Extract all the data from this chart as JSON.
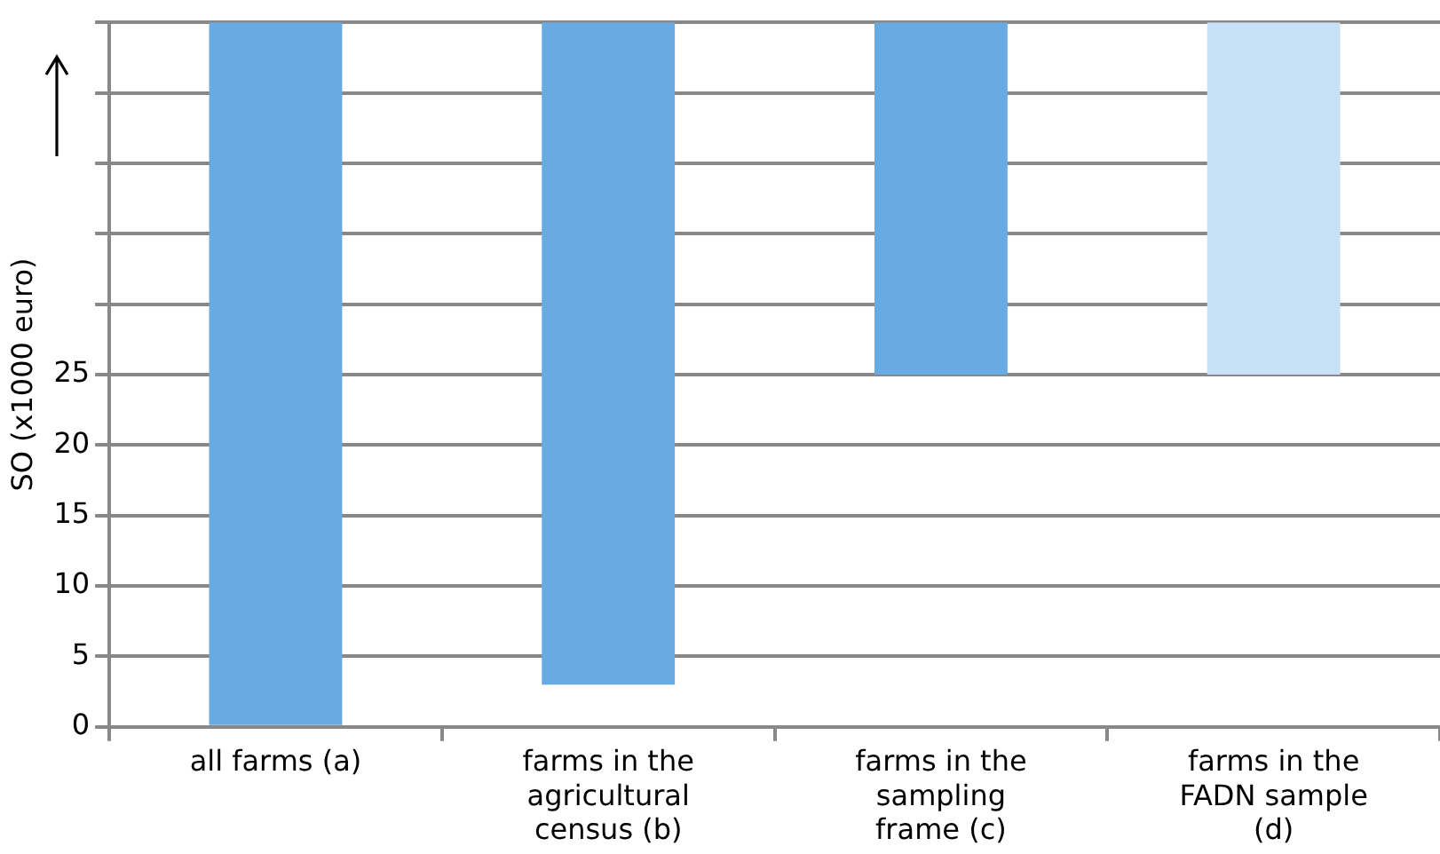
{
  "chart_data": {
    "type": "bar",
    "ylabel": "SO (x1000 euro)",
    "categories": [
      "all farms (a)",
      "farms in the agricultural census (b)",
      "farms in the sampling frame (c)",
      "farms in the FADN sample (d)"
    ],
    "values": [
      50,
      47,
      25,
      25
    ],
    "base": [
      0,
      3,
      25,
      25
    ],
    "colors": [
      "#68abe2",
      "#68abe2",
      "#68abe2",
      "#c8e0f5"
    ],
    "ylim": [
      0,
      50
    ],
    "yticks": [
      0,
      5,
      10,
      15,
      20,
      25,
      {
        "value": 30,
        "label": null
      },
      {
        "value": 35,
        "label": null
      },
      {
        "value": 40,
        "label": null
      },
      {
        "value": 45,
        "label": null
      },
      {
        "value": 50,
        "label": null
      }
    ],
    "grid": "y",
    "legend": false
  }
}
